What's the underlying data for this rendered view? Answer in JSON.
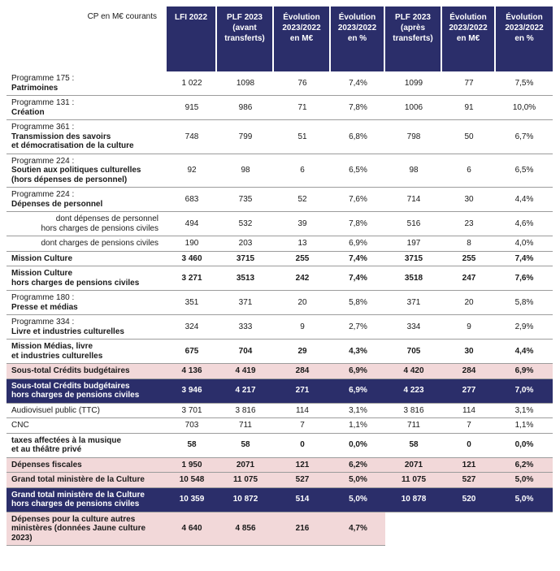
{
  "colors": {
    "navy": "#2b2e6a",
    "pink": "#f2d8d9",
    "border": "#9c9c9c",
    "text": "#1a1a1a",
    "header_text": "#ffffff"
  },
  "chart_data": {
    "type": "table",
    "unit_label": "CP en M€ courants",
    "columns": [
      "LFI 2022",
      "PLF 2023\n(avant\ntransferts)",
      "Évolution\n2023/2022\nen M€",
      "Évolution\n2023/2022\nen %",
      "PLF 2023\n(après\ntransferts)",
      "Évolution\n2023/2022\nen M€",
      "Évolution\n2023/2022\nen %"
    ],
    "rows": [
      {
        "style": "programme",
        "prefix": "Programme 175 :",
        "label": "Patrimoines",
        "values": [
          "1 022",
          "1098",
          "76",
          "7,4%",
          "1099",
          "77",
          "7,5%"
        ]
      },
      {
        "style": "programme",
        "prefix": "Programme 131 :",
        "label": "Création",
        "values": [
          "915",
          "986",
          "71",
          "7,8%",
          "1006",
          "91",
          "10,0%"
        ]
      },
      {
        "style": "programme",
        "prefix": "Programme 361 :",
        "label": "Transmission des savoirs\net démocratisation de la culture",
        "values": [
          "748",
          "799",
          "51",
          "6,8%",
          "798",
          "50",
          "6,7%"
        ]
      },
      {
        "style": "programme",
        "prefix": "Programme 224 :",
        "label": "Soutien aux politiques culturelles\n(hors dépenses de personnel)",
        "values": [
          "92",
          "98",
          "6",
          "6,5%",
          "98",
          "6",
          "6,5%"
        ]
      },
      {
        "style": "programme",
        "prefix": "Programme 224 :",
        "label": "Dépenses de personnel",
        "values": [
          "683",
          "735",
          "52",
          "7,6%",
          "714",
          "30",
          "4,4%"
        ]
      },
      {
        "style": "sub",
        "label": "dont dépenses de personnel\nhors charges de pensions civiles",
        "values": [
          "494",
          "532",
          "39",
          "7,8%",
          "516",
          "23",
          "4,6%"
        ]
      },
      {
        "style": "sub",
        "label": "dont charges de pensions civiles",
        "values": [
          "190",
          "203",
          "13",
          "6,9%",
          "197",
          "8",
          "4,0%"
        ]
      },
      {
        "style": "bold",
        "label": "Mission Culture",
        "values": [
          "3 460",
          "3715",
          "255",
          "7,4%",
          "3715",
          "255",
          "7,4%"
        ]
      },
      {
        "style": "bold",
        "label": "Mission Culture\nhors charges de pensions civiles",
        "values": [
          "3 271",
          "3513",
          "242",
          "7,4%",
          "3518",
          "247",
          "7,6%"
        ]
      },
      {
        "style": "programme",
        "prefix": "Programme 180 :",
        "label": "Presse et médias",
        "values": [
          "351",
          "371",
          "20",
          "5,8%",
          "371",
          "20",
          "5,8%"
        ]
      },
      {
        "style": "programme",
        "prefix": "Programme 334 :",
        "label": "Livre et industries culturelles",
        "values": [
          "324",
          "333",
          "9",
          "2,7%",
          "334",
          "9",
          "2,9%"
        ]
      },
      {
        "style": "bold",
        "label": "Mission Médias, livre\net industries culturelles",
        "values": [
          "675",
          "704",
          "29",
          "4,3%",
          "705",
          "30",
          "4,4%"
        ]
      },
      {
        "style": "pink",
        "label": "Sous-total Crédits budgétaires",
        "values": [
          "4 136",
          "4 419",
          "284",
          "6,9%",
          "4 420",
          "284",
          "6,9%"
        ]
      },
      {
        "style": "navy",
        "label": "Sous-total Crédits budgétaires\nhors charges de pensions civiles",
        "values": [
          "3 946",
          "4 217",
          "271",
          "6,9%",
          "4 223",
          "277",
          "7,0%"
        ]
      },
      {
        "style": "normal",
        "label": "Audiovisuel public (TTC)",
        "values": [
          "3 701",
          "3 816",
          "114",
          "3,1%",
          "3 816",
          "114",
          "3,1%"
        ]
      },
      {
        "style": "normal",
        "label": "CNC",
        "values": [
          "703",
          "711",
          "7",
          "1,1%",
          "711",
          "7",
          "1,1%"
        ]
      },
      {
        "style": "bold",
        "label": "taxes affectées à la musique\net au théâtre privé",
        "values": [
          "58",
          "58",
          "0",
          "0,0%",
          "58",
          "0",
          "0,0%"
        ]
      },
      {
        "style": "pink",
        "label": "Dépenses fiscales",
        "values": [
          "1 950",
          "2071",
          "121",
          "6,2%",
          "2071",
          "121",
          "6,2%"
        ]
      },
      {
        "style": "pink",
        "label": "Grand total ministère de la Culture",
        "values": [
          "10 548",
          "11 075",
          "527",
          "5,0%",
          "11 075",
          "527",
          "5,0%"
        ]
      },
      {
        "style": "navy",
        "label": "Grand total ministère de la Culture\nhors charges de pensions civiles",
        "values": [
          "10 359",
          "10 872",
          "514",
          "5,0%",
          "10 878",
          "520",
          "5,0%"
        ]
      },
      {
        "style": "pinkpartial",
        "label": "Dépenses pour la culture autres\nministères (données Jaune culture\n2023)",
        "values": [
          "4 640",
          "4 856",
          "216",
          "4,7%",
          "",
          "",
          ""
        ]
      }
    ]
  }
}
